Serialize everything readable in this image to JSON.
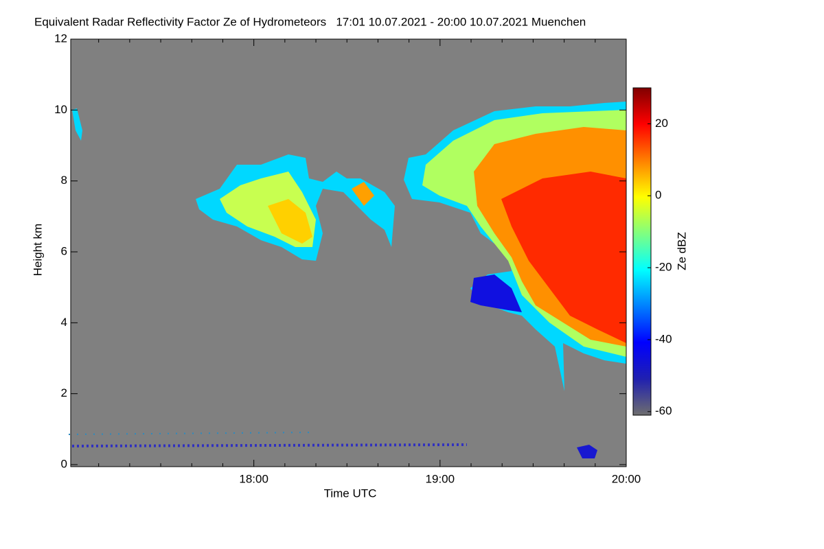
{
  "chart_data": {
    "type": "heatmap",
    "title": "Equivalent Radar Reflectivity Factor Ze of Hydrometeors   17:01 10.07.2021 - 20:00 10.07.2021 Muenchen",
    "xlabel": "Time UTC",
    "ylabel": "Height km",
    "xlim": [
      1021,
      1200
    ],
    "xticks": [
      {
        "value": 1080,
        "label": "18:00"
      },
      {
        "value": 1140,
        "label": "19:00"
      },
      {
        "value": 1200,
        "label": "20:00"
      }
    ],
    "xminorticks": [
      1030,
      1040,
      1050,
      1060,
      1070,
      1090,
      1100,
      1110,
      1120,
      1130,
      1150,
      1160,
      1170,
      1180,
      1190
    ],
    "ylim": [
      0,
      12
    ],
    "yticks": [
      0,
      2,
      4,
      6,
      8,
      10,
      12
    ],
    "colorbar": {
      "label": "Ze dBZ",
      "lim": [
        -61,
        30
      ],
      "ticks": [
        -60,
        -40,
        -20,
        0,
        20
      ],
      "colormap": [
        "#6e6e6e",
        "#2020b0",
        "#0000ff",
        "#0080ff",
        "#00ffff",
        "#80ff80",
        "#ffff00",
        "#ff8000",
        "#ff0000",
        "#800000"
      ]
    },
    "background": "#808080"
  }
}
